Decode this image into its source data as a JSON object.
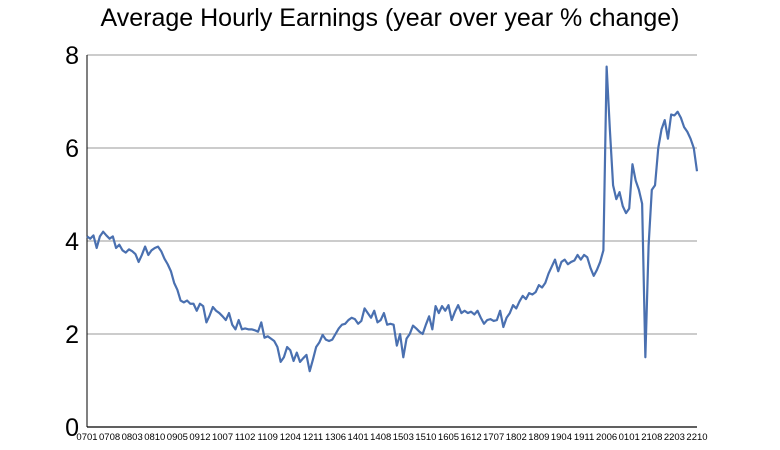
{
  "chart_data": {
    "type": "line",
    "title": "Average Hourly Earnings (year over year % change)",
    "xlabel": "",
    "ylabel": "",
    "ylim": [
      0,
      8
    ],
    "y_ticks": [
      "0",
      "2",
      "4",
      "6",
      "8"
    ],
    "x_ticks": [
      "0701",
      "0708",
      "0803",
      "0810",
      "0905",
      "0912",
      "1007",
      "1102",
      "1109",
      "1204",
      "1211",
      "1306",
      "1401",
      "1408",
      "1503",
      "1510",
      "1605",
      "1612",
      "1707",
      "1802",
      "1809",
      "1904",
      "1911",
      "2006",
      "0101",
      "2108",
      "2203",
      "2210"
    ],
    "grid": true,
    "line_color": "#4a70b0",
    "series": [
      {
        "x": [
          "0701",
          "0702",
          "0703",
          "0704",
          "0705",
          "0706",
          "0707",
          "0708",
          "0709",
          "0710",
          "0711",
          "0712",
          "0801",
          "0802",
          "0803",
          "0804",
          "0805",
          "0806",
          "0807",
          "0808",
          "0809",
          "0810",
          "0811",
          "0812",
          "0901",
          "0902",
          "0903",
          "0904",
          "0905",
          "0906",
          "0907",
          "0908",
          "0909",
          "0910",
          "0911",
          "0912",
          "1001",
          "1002",
          "1003",
          "1004",
          "1005",
          "1006",
          "1007",
          "1008",
          "1009",
          "1010",
          "1011",
          "1012",
          "1101",
          "1102",
          "1103",
          "1104",
          "1105",
          "1106",
          "1107",
          "1108",
          "1109",
          "1110",
          "1111",
          "1112",
          "1201",
          "1202",
          "1203",
          "1204",
          "1205",
          "1206",
          "1207",
          "1208",
          "1209",
          "1210",
          "1211",
          "1212",
          "1301",
          "1302",
          "1303",
          "1304",
          "1305",
          "1306",
          "1307",
          "1308",
          "1309",
          "1310",
          "1311",
          "1312",
          "1401",
          "1402",
          "1403",
          "1404",
          "1405",
          "1406",
          "1407",
          "1408",
          "1409",
          "1410",
          "1411",
          "1412",
          "1501",
          "1502",
          "1503",
          "1504",
          "1505",
          "1506",
          "1507",
          "1508",
          "1509",
          "1510",
          "1511",
          "1512",
          "1601",
          "1602",
          "1603",
          "1604",
          "1605",
          "1606",
          "1607",
          "1608",
          "1609",
          "1610",
          "1611",
          "1612",
          "1701",
          "1702",
          "1703",
          "1704",
          "1705",
          "1706",
          "1707",
          "1708",
          "1709",
          "1710",
          "1711",
          "1712",
          "1801",
          "1802",
          "1803",
          "1804",
          "1805",
          "1806",
          "1807",
          "1808",
          "1809",
          "1810",
          "1811",
          "1812",
          "1901",
          "1902",
          "1903",
          "1904",
          "1905",
          "1906",
          "1907",
          "1908",
          "1909",
          "1910",
          "1911",
          "1912",
          "2001",
          "2002",
          "2003",
          "2004",
          "2005",
          "2006",
          "2007",
          "2008",
          "2009",
          "2010",
          "2011",
          "2012",
          "0101",
          "0102",
          "0103",
          "0104",
          "0105",
          "0106",
          "0107",
          "0108",
          "2109",
          "2110",
          "2111",
          "2112",
          "2201",
          "2202",
          "2203",
          "2204",
          "2205",
          "2206",
          "2207",
          "2208",
          "2209",
          "2210"
        ],
        "values": [
          4.1,
          4.05,
          4.12,
          3.85,
          4.1,
          4.2,
          4.12,
          4.05,
          4.1,
          3.85,
          3.92,
          3.8,
          3.75,
          3.82,
          3.78,
          3.72,
          3.55,
          3.7,
          3.88,
          3.7,
          3.8,
          3.85,
          3.88,
          3.78,
          3.62,
          3.5,
          3.35,
          3.1,
          2.95,
          2.72,
          2.68,
          2.72,
          2.65,
          2.65,
          2.5,
          2.65,
          2.6,
          2.25,
          2.4,
          2.58,
          2.5,
          2.45,
          2.38,
          2.3,
          2.45,
          2.2,
          2.1,
          2.3,
          2.1,
          2.12,
          2.1,
          2.1,
          2.08,
          2.05,
          2.25,
          1.92,
          1.95,
          1.9,
          1.85,
          1.72,
          1.4,
          1.5,
          1.72,
          1.65,
          1.42,
          1.6,
          1.4,
          1.48,
          1.55,
          1.2,
          1.45,
          1.72,
          1.82,
          1.98,
          1.88,
          1.85,
          1.88,
          2.0,
          2.12,
          2.2,
          2.22,
          2.3,
          2.35,
          2.32,
          2.22,
          2.28,
          2.55,
          2.45,
          2.35,
          2.5,
          2.25,
          2.3,
          2.45,
          2.2,
          2.22,
          2.2,
          1.75,
          2.0,
          1.5,
          1.9,
          2.0,
          2.18,
          2.12,
          2.05,
          2.0,
          2.2,
          2.38,
          2.1,
          2.6,
          2.45,
          2.6,
          2.5,
          2.62,
          2.3,
          2.48,
          2.62,
          2.45,
          2.5,
          2.45,
          2.48,
          2.42,
          2.5,
          2.35,
          2.22,
          2.3,
          2.32,
          2.28,
          2.3,
          2.5,
          2.15,
          2.35,
          2.45,
          2.62,
          2.55,
          2.7,
          2.82,
          2.75,
          2.88,
          2.85,
          2.9,
          3.05,
          3.0,
          3.1,
          3.3,
          3.45,
          3.6,
          3.35,
          3.55,
          3.6,
          3.5,
          3.55,
          3.58,
          3.7,
          3.6,
          3.7,
          3.65,
          3.42,
          3.25,
          3.38,
          3.55,
          3.8,
          7.75,
          6.4,
          5.2,
          4.9,
          5.05,
          4.75,
          4.6,
          4.7,
          5.65,
          5.3,
          5.1,
          4.8,
          1.5,
          3.9,
          5.1,
          5.2,
          6.0,
          6.4,
          6.6,
          6.2,
          6.72,
          6.7,
          6.78,
          6.65,
          6.45,
          6.35,
          6.2,
          6.0,
          5.5
        ]
      }
    ]
  }
}
